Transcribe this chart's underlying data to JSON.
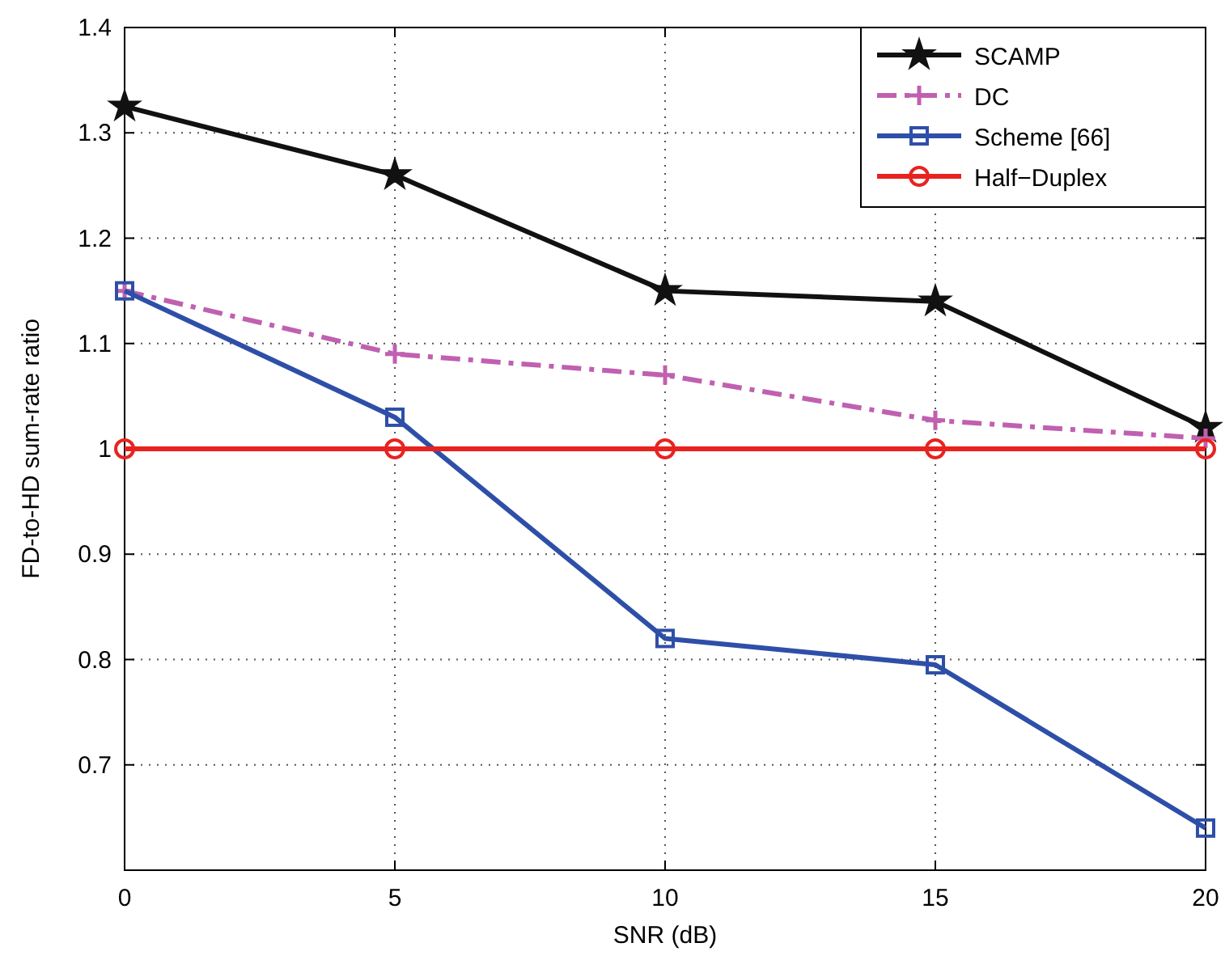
{
  "chart_data": {
    "type": "line",
    "xlabel": "SNR (dB)",
    "ylabel": "FD-to-HD sum-rate ratio",
    "x": [
      0,
      5,
      10,
      15,
      20
    ],
    "xlim": [
      0,
      20
    ],
    "xticks": [
      0,
      5,
      10,
      15,
      20
    ],
    "ylim": [
      0.6,
      1.4
    ],
    "yticks": [
      0.7,
      0.8,
      0.9,
      1,
      1.1,
      1.2,
      1.3,
      1.4
    ],
    "grid": true,
    "legend": "top right",
    "series": [
      {
        "name": "SCAMP",
        "color": "#111111",
        "marker": "star",
        "line_style": "solid",
        "values": [
          1.325,
          1.26,
          1.15,
          1.14,
          1.02
        ]
      },
      {
        "name": "DC",
        "color": "#c060b0",
        "marker": "cross",
        "line_style": "dashed",
        "values": [
          1.15,
          1.09,
          1.07,
          1.027,
          1.01
        ]
      },
      {
        "name": "Scheme [66]",
        "color": "#2e4fa8",
        "marker": "square",
        "line_style": "solid",
        "values": [
          1.15,
          1.03,
          0.82,
          0.795,
          0.64
        ]
      },
      {
        "name": "Half−Duplex",
        "color": "#e8231f",
        "marker": "circle",
        "line_style": "solid",
        "values": [
          1,
          1,
          1,
          1,
          1
        ]
      }
    ]
  }
}
